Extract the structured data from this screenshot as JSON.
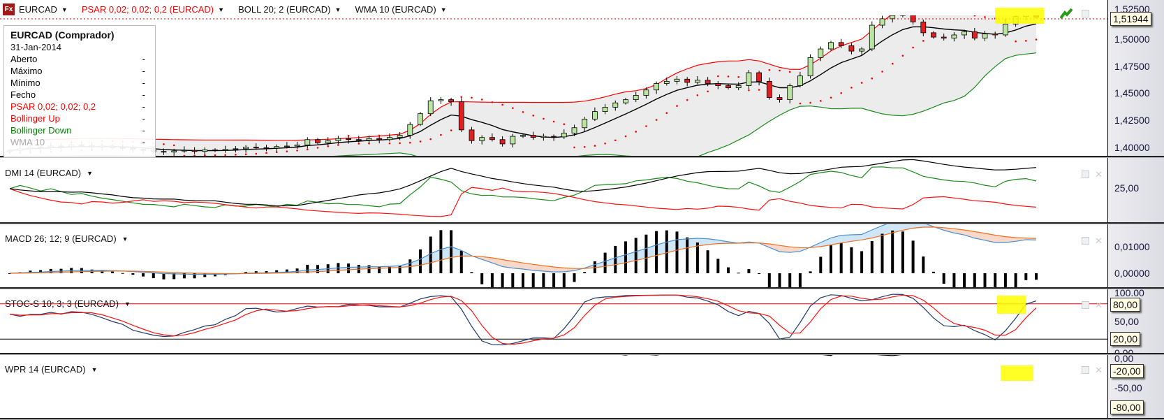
{
  "header": {
    "symbol": "EURCAD",
    "logo_text": "Fx",
    "indicators": [
      {
        "label": "PSAR 0,02; 0,02; 0,2 (EURCAD)",
        "color": "#ff0000"
      },
      {
        "label": "BOLL 20; 2 (EURCAD)",
        "color": "#000000"
      },
      {
        "label": "WMA 10 (EURCAD)",
        "color": "#000000"
      }
    ]
  },
  "legend": {
    "title": "EURCAD (Comprador)",
    "date": "31-Jan-2014",
    "rows": [
      {
        "label": "Aberto",
        "value": "-",
        "color": "#000000"
      },
      {
        "label": "Máximo",
        "value": "-",
        "color": "#000000"
      },
      {
        "label": "Mínimo",
        "value": "-",
        "color": "#000000"
      },
      {
        "label": "Fecho",
        "value": "-",
        "color": "#000000"
      },
      {
        "label": "PSAR 0,02; 0,02; 0,2",
        "value": "-",
        "color": "#ff0000"
      },
      {
        "label": "Bollinger Up",
        "value": "-",
        "color": "#ff0000"
      },
      {
        "label": "Bollinger Down",
        "value": "-",
        "color": "#008000"
      },
      {
        "label": "WMA 10",
        "value": "-",
        "color": "#aaaaaa"
      }
    ]
  },
  "panels": {
    "dmi": {
      "label": "DMI 14 (EURCAD)",
      "axis": [
        "25,00"
      ]
    },
    "macd": {
      "label": "MACD 26; 12; 9 (EURCAD)",
      "axis": [
        "0,01000",
        "0,00000"
      ]
    },
    "stoc": {
      "label": "STOC-S 10; 3; 3 (EURCAD)",
      "axis": [
        "100,00",
        "50,00",
        "0,00"
      ],
      "levels": [
        "80,00",
        "20,00"
      ]
    },
    "wpr": {
      "label": "WPR 14 (EURCAD)",
      "axis": [
        "0,00",
        "-50,00"
      ],
      "levels": [
        "-20,00",
        "-80,00"
      ]
    }
  },
  "price_axis": [
    "1,52500",
    "1,50000",
    "1,47500",
    "1,45000",
    "1,42500",
    "1,40000"
  ],
  "current_price": "1,51944",
  "colors": {
    "bull": "#b8e6a0",
    "bear": "#e02020",
    "boll_up": "#ff0000",
    "boll_down": "#1a8a1a",
    "psar": "#ff0000",
    "highlight": "#ffff00"
  },
  "chart_data": {
    "type": "candlestick",
    "symbol": "EURCAD",
    "current": 1.51944,
    "closes": [
      1.396,
      1.3975,
      1.399,
      1.3985,
      1.4,
      1.3995,
      1.401,
      1.4005,
      1.399,
      1.4,
      1.3985,
      1.398,
      1.397,
      1.396,
      1.395,
      1.3945,
      1.3955,
      1.396,
      1.395,
      1.3965,
      1.396,
      1.397,
      1.3975,
      1.399,
      1.3985,
      1.398,
      1.3995,
      1.4,
      1.401,
      1.406,
      1.403,
      1.405,
      1.407,
      1.406,
      1.4055,
      1.407,
      1.406,
      1.408,
      1.41,
      1.42,
      1.43,
      1.442,
      1.443,
      1.441,
      1.415,
      1.405,
      1.408,
      1.406,
      1.402,
      1.409,
      1.41,
      1.408,
      1.409,
      1.4085,
      1.412,
      1.417,
      1.425,
      1.432,
      1.436,
      1.44,
      1.443,
      1.447,
      1.452,
      1.458,
      1.46,
      1.462,
      1.459,
      1.461,
      1.458,
      1.456,
      1.454,
      1.456,
      1.468,
      1.46,
      1.445,
      1.443,
      1.456,
      1.465,
      1.482,
      1.49,
      1.496,
      1.493,
      1.488,
      1.49,
      1.512,
      1.518,
      1.521,
      1.522,
      1.515,
      1.505,
      1.501,
      1.5,
      1.503,
      1.506,
      1.5,
      1.504,
      1.503,
      1.513,
      1.52,
      1.525,
      1.5194
    ]
  }
}
